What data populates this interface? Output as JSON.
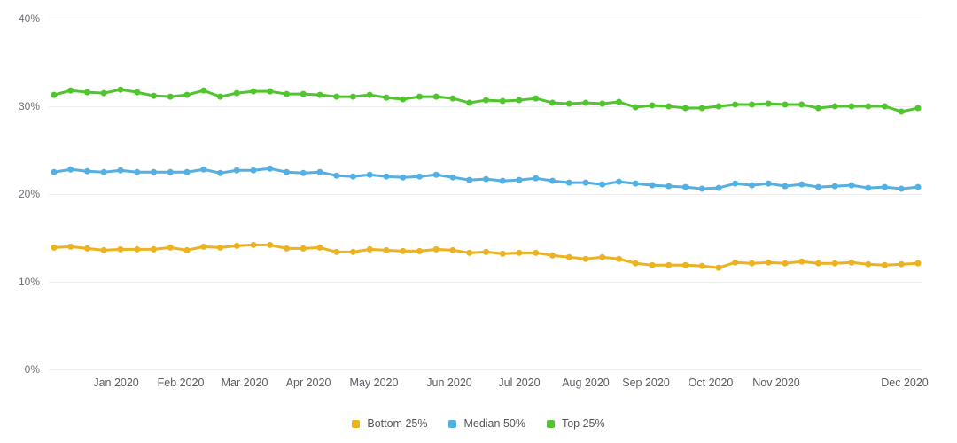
{
  "chart_data": {
    "type": "line",
    "title": "",
    "points_per_series": 53,
    "x_axis": {
      "tick_labels": [
        "Jan 2020",
        "Feb 2020",
        "Mar 2020",
        "Apr 2020",
        "May 2020",
        "Jun 2020",
        "Jul 2020",
        "Aug 2020",
        "Sep 2020",
        "Oct 2020",
        "Nov 2020",
        "Dec 2020"
      ],
      "tick_positions_pct": [
        7.72,
        15.13,
        22.44,
        29.75,
        37.26,
        45.89,
        53.91,
        61.52,
        68.43,
        75.84,
        83.35,
        98.07
      ]
    },
    "y_axis": {
      "tick_labels": [
        "0%",
        "10%",
        "20%",
        "30%",
        "40%"
      ],
      "tick_values": [
        0,
        10,
        20,
        30,
        40
      ],
      "min": 0,
      "max": 40,
      "unit": "%"
    },
    "grid": true,
    "legend_position": "bottom",
    "series": [
      {
        "name": "Bottom 25%",
        "color": "#ecb220",
        "values": [
          13.9,
          14.0,
          13.8,
          13.6,
          13.7,
          13.7,
          13.7,
          13.9,
          13.6,
          14.0,
          13.9,
          14.1,
          14.2,
          14.2,
          13.8,
          13.8,
          13.9,
          13.4,
          13.4,
          13.7,
          13.6,
          13.5,
          13.5,
          13.7,
          13.6,
          13.3,
          13.4,
          13.2,
          13.3,
          13.3,
          13.0,
          12.8,
          12.6,
          12.8,
          12.6,
          12.1,
          11.9,
          11.9,
          11.9,
          11.8,
          11.6,
          12.2,
          12.1,
          12.2,
          12.1,
          12.3,
          12.1,
          12.1,
          12.2,
          12.0,
          11.9,
          12.0,
          12.1
        ]
      },
      {
        "name": "Median 50%",
        "color": "#54b0e3",
        "values": [
          22.5,
          22.8,
          22.6,
          22.5,
          22.7,
          22.5,
          22.5,
          22.5,
          22.5,
          22.8,
          22.4,
          22.7,
          22.7,
          22.9,
          22.5,
          22.4,
          22.5,
          22.1,
          22.0,
          22.2,
          22.0,
          21.9,
          22.0,
          22.2,
          21.9,
          21.6,
          21.7,
          21.5,
          21.6,
          21.8,
          21.5,
          21.3,
          21.3,
          21.1,
          21.4,
          21.2,
          21.0,
          20.9,
          20.8,
          20.6,
          20.7,
          21.2,
          21.0,
          21.2,
          20.9,
          21.1,
          20.8,
          20.9,
          21.0,
          20.7,
          20.8,
          20.6,
          20.8
        ]
      },
      {
        "name": "Top 25%",
        "color": "#50c52e",
        "values": [
          31.3,
          31.8,
          31.6,
          31.5,
          31.9,
          31.6,
          31.2,
          31.1,
          31.3,
          31.8,
          31.1,
          31.5,
          31.7,
          31.7,
          31.4,
          31.4,
          31.3,
          31.1,
          31.1,
          31.3,
          31.0,
          30.8,
          31.1,
          31.1,
          30.9,
          30.4,
          30.7,
          30.6,
          30.7,
          30.9,
          30.4,
          30.3,
          30.4,
          30.3,
          30.5,
          29.9,
          30.1,
          30.0,
          29.8,
          29.8,
          30.0,
          30.2,
          30.2,
          30.3,
          30.2,
          30.2,
          29.8,
          30.0,
          30.0,
          30.0,
          30.0,
          29.4,
          29.8
        ]
      }
    ],
    "style": {
      "gridline_color": "#ededed",
      "y_label_color": "#6e6e78",
      "x_label_color": "#5a5b63",
      "legend_text_color": "#54555c",
      "background": "#ffffff"
    }
  }
}
